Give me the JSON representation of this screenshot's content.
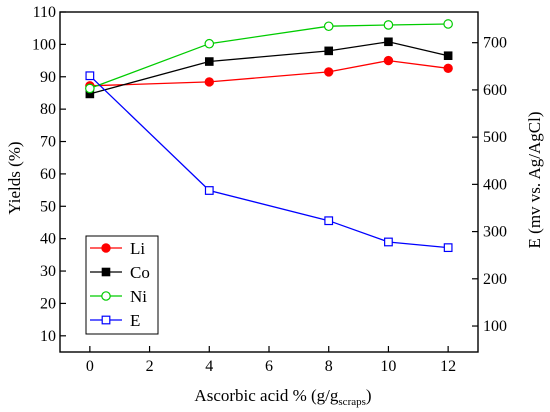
{
  "chart_data": {
    "type": "line",
    "x": [
      0,
      4,
      8,
      10,
      12
    ],
    "xlabel_main": "Ascorbic acid % (g/g",
    "xlabel_sub": "scraps",
    "xlabel_end": ")",
    "ylabel_left": "Yields (%)",
    "ylabel_right": "E (mv vs. Ag/AgCl)",
    "xlim": [
      -1,
      13
    ],
    "ylim_left": [
      5,
      110
    ],
    "ylim_right": [
      45,
      765
    ],
    "xticks": [
      0,
      2,
      4,
      6,
      8,
      10,
      12
    ],
    "yticks_left": [
      10,
      20,
      30,
      40,
      50,
      60,
      70,
      80,
      90,
      100,
      110
    ],
    "yticks_right": [
      100,
      200,
      300,
      400,
      500,
      600,
      700
    ],
    "legend_position": "lower-left",
    "grid": false,
    "series": [
      {
        "name": "Li",
        "axis": "left",
        "color": "#ff0000",
        "marker": "filled-circle",
        "values": [
          87.2,
          88.4,
          91.5,
          95.0,
          92.6
        ]
      },
      {
        "name": "Co",
        "axis": "left",
        "color": "#000000",
        "marker": "filled-square",
        "values": [
          84.7,
          94.7,
          98.0,
          100.8,
          96.5
        ]
      },
      {
        "name": "Ni",
        "axis": "left",
        "color": "#00cc00",
        "marker": "open-circle",
        "values": [
          86.4,
          100.2,
          105.6,
          106.0,
          106.3
        ]
      },
      {
        "name": "E",
        "axis": "right",
        "color": "#0000ff",
        "marker": "open-square",
        "values": [
          630,
          387,
          323,
          278,
          266
        ]
      }
    ]
  }
}
